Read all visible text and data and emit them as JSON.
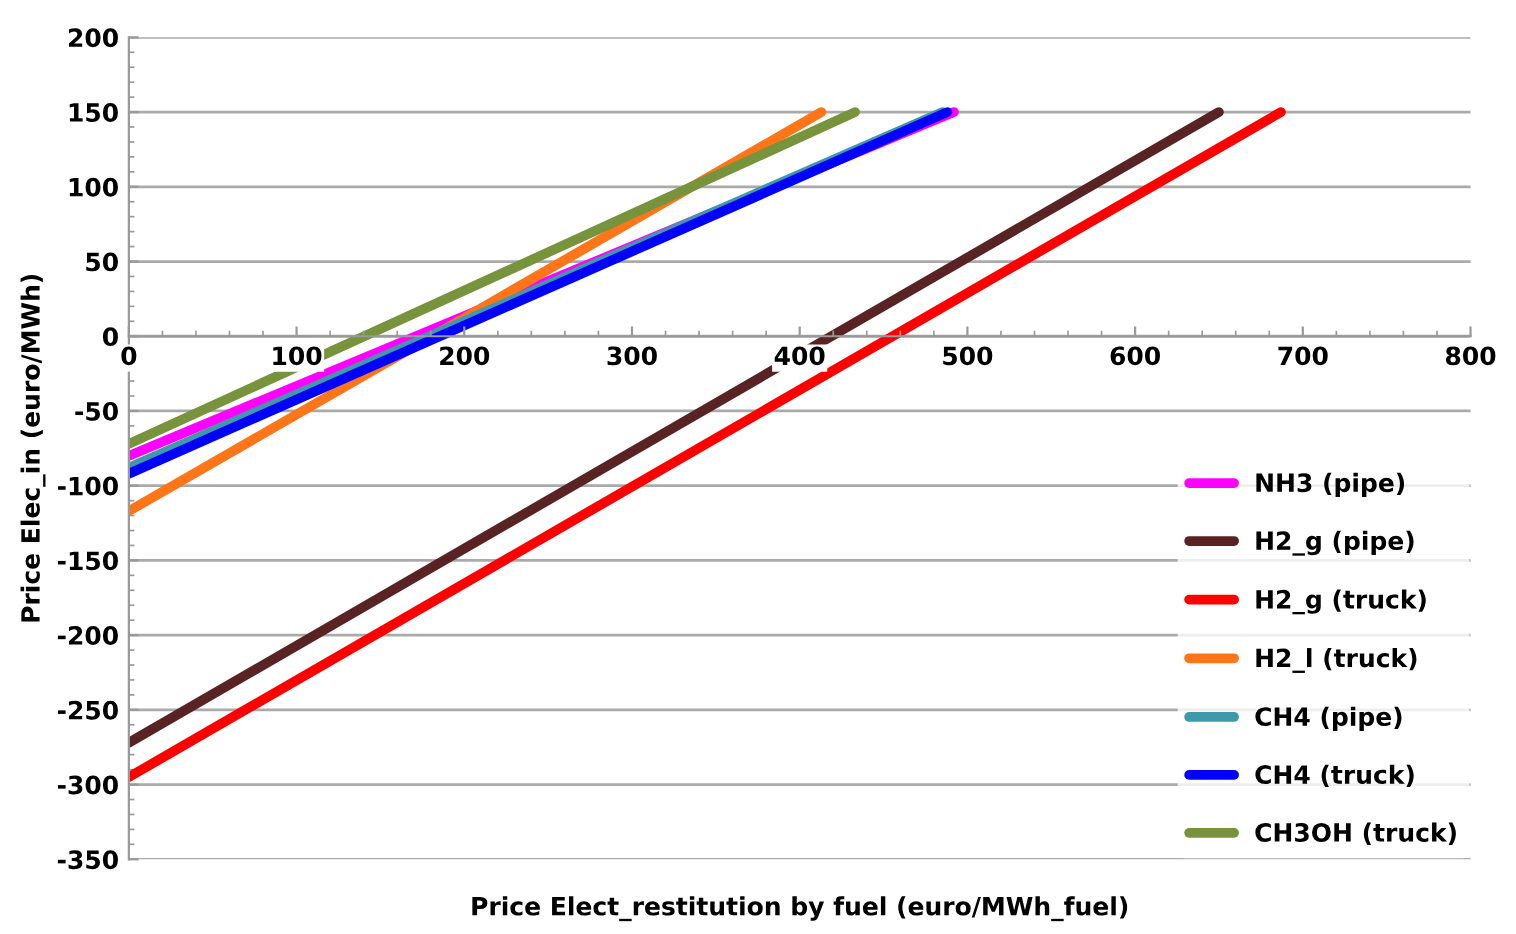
{
  "chart_data": {
    "type": "line",
    "xlabel": "Price Elect_restitution by fuel (euro/MWh_fuel)",
    "ylabel": "Price Elec_in (euro/MWh)",
    "series": [
      {
        "name": "NH3 (pipe)",
        "color": "#ff00ff",
        "x": [
          0,
          492
        ],
        "values": [
          -80,
          150
        ]
      },
      {
        "name": "H2_g (pipe)",
        "color": "#5a2323",
        "x": [
          0,
          650
        ],
        "values": [
          -272,
          150
        ]
      },
      {
        "name": "H2_g (truck)",
        "color": "#ff0000",
        "x": [
          0,
          687
        ],
        "values": [
          -295,
          150
        ]
      },
      {
        "name": "H2_l (truck)",
        "color": "#ff7518",
        "x": [
          0,
          413
        ],
        "values": [
          -117,
          150
        ]
      },
      {
        "name": "CH4 (pipe)",
        "color": "#3e9aab",
        "x": [
          0,
          485
        ],
        "values": [
          -88,
          150
        ]
      },
      {
        "name": "CH4 (truck)",
        "color": "#0000ff",
        "x": [
          0,
          488
        ],
        "values": [
          -92,
          150
        ]
      },
      {
        "name": "CH3OH (truck)",
        "color": "#77933c",
        "x": [
          0,
          433
        ],
        "values": [
          -72,
          150
        ]
      }
    ],
    "xlim": [
      0,
      800
    ],
    "xticks": [
      0,
      100,
      200,
      300,
      400,
      500,
      600,
      700,
      800
    ],
    "ylim": [
      -350,
      200
    ],
    "yticks": [
      -350,
      -300,
      -250,
      -200,
      -150,
      -100,
      -50,
      0,
      50,
      100,
      150,
      200
    ],
    "grid": "y",
    "legend": "bottom right",
    "marker": "none",
    "line_style": "solid"
  }
}
